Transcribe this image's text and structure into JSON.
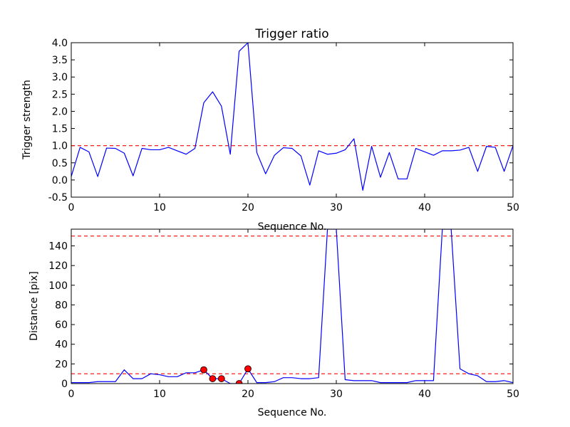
{
  "chart_data": [
    {
      "type": "line",
      "title": "Trigger ratio",
      "xlabel": "Sequence No.",
      "ylabel": "Trigger strength",
      "xlim": [
        0,
        50
      ],
      "ylim": [
        -0.5,
        4.0
      ],
      "xticks": [
        0,
        10,
        20,
        30,
        40,
        50
      ],
      "yticks": [
        -0.5,
        0.0,
        0.5,
        1.0,
        1.5,
        2.0,
        2.5,
        3.0,
        3.5,
        4.0
      ],
      "grid": false,
      "series": [
        {
          "color": "#0000ff",
          "x": [
            0,
            1,
            2,
            3,
            4,
            5,
            6,
            7,
            8,
            9,
            10,
            11,
            12,
            13,
            14,
            15,
            16,
            17,
            18,
            19,
            20,
            21,
            22,
            23,
            24,
            25,
            26,
            27,
            28,
            29,
            30,
            31,
            32,
            33,
            34,
            35,
            36,
            37,
            38,
            39,
            40,
            41,
            42,
            43,
            44,
            45,
            46,
            47,
            48,
            49,
            50
          ],
          "values": [
            0.1,
            0.95,
            0.82,
            0.1,
            0.93,
            0.92,
            0.78,
            0.12,
            0.92,
            0.88,
            0.88,
            0.95,
            0.85,
            0.75,
            0.92,
            2.25,
            2.57,
            2.15,
            0.75,
            3.75,
            4.0,
            0.8,
            0.18,
            0.72,
            0.94,
            0.92,
            0.7,
            -0.15,
            0.85,
            0.75,
            0.78,
            0.88,
            1.2,
            -0.3,
            0.98,
            0.08,
            0.8,
            0.03,
            0.03,
            0.92,
            0.82,
            0.72,
            0.85,
            0.85,
            0.87,
            0.95,
            0.25,
            0.98,
            0.95,
            0.25,
            1.0
          ]
        }
      ],
      "reference_lines": [
        {
          "y": 1.0,
          "color": "#ff0000",
          "style": "dashed"
        }
      ]
    },
    {
      "type": "line",
      "title": "",
      "xlabel": "Sequence No.",
      "ylabel": "Distance [pix]",
      "xlim": [
        0,
        50
      ],
      "ylim": [
        0,
        157
      ],
      "xticks": [
        0,
        10,
        20,
        30,
        40,
        50
      ],
      "yticks": [
        0,
        20,
        40,
        60,
        80,
        100,
        120,
        140
      ],
      "grid": false,
      "series": [
        {
          "color": "#0000ff",
          "x": [
            0,
            1,
            2,
            3,
            4,
            5,
            6,
            7,
            8,
            9,
            10,
            11,
            12,
            13,
            14,
            15,
            16,
            17,
            18,
            19,
            20,
            21,
            22,
            23,
            24,
            25,
            26,
            27,
            28,
            29,
            30,
            31,
            32,
            33,
            34,
            35,
            36,
            37,
            38,
            39,
            40,
            41,
            42,
            43,
            44,
            45,
            46,
            47,
            48,
            49,
            50
          ],
          "values": [
            1,
            1,
            1,
            2,
            2,
            2,
            14,
            5,
            5,
            10,
            9,
            7,
            7,
            11,
            11,
            14,
            5,
            5,
            0,
            0,
            15,
            1,
            1,
            2,
            6,
            6,
            5,
            5,
            6,
            157,
            157,
            4,
            3,
            3,
            3,
            1,
            1,
            1,
            1,
            3,
            3,
            3,
            157,
            157,
            15,
            10,
            8,
            2,
            2,
            3,
            1
          ]
        }
      ],
      "markers": {
        "color": "#ff0000",
        "x": [
          15,
          16,
          17,
          19,
          20
        ],
        "values": [
          14,
          5,
          5,
          0,
          15
        ]
      },
      "reference_lines": [
        {
          "y": 150,
          "color": "#ff0000",
          "style": "dashed"
        },
        {
          "y": 10,
          "color": "#ff0000",
          "style": "dashed"
        }
      ]
    }
  ]
}
